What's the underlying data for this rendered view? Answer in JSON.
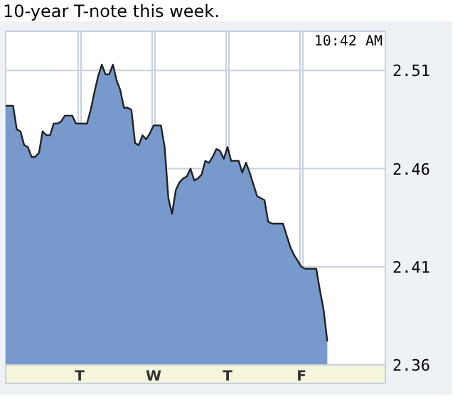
{
  "chart_data": {
    "type": "area",
    "title": "10-year T-note this week.",
    "annotations": [
      "10:42 AM"
    ],
    "categories": [
      null,
      null,
      null,
      null,
      null,
      null,
      null,
      null,
      null,
      null,
      null,
      null,
      null,
      null,
      null,
      null,
      null,
      null,
      null,
      null,
      "T",
      null,
      null,
      null,
      null,
      null,
      null,
      null,
      null,
      null,
      null,
      null,
      null,
      null,
      null,
      null,
      null,
      null,
      null,
      null,
      "W",
      null,
      null,
      null,
      null,
      null,
      null,
      null,
      null,
      null,
      null,
      null,
      null,
      null,
      null,
      null,
      null,
      null,
      null,
      null,
      "T",
      null,
      null,
      null,
      null,
      null,
      null,
      null,
      null,
      null,
      null,
      null,
      null,
      null,
      null,
      null,
      null,
      null,
      null,
      null,
      "F",
      null,
      null,
      null,
      null,
      null,
      null,
      null,
      null,
      null,
      null,
      null,
      null,
      null,
      null,
      null,
      null,
      null,
      null,
      null,
      null,
      null,
      null
    ],
    "series": [
      {
        "color": "#7799cc",
        "values": [
          2.492,
          2.492,
          2.492,
          2.48,
          2.479,
          2.472,
          2.471,
          2.466,
          2.466,
          2.468,
          2.479,
          2.477,
          2.477,
          2.483,
          2.483,
          2.484,
          2.487,
          2.487,
          2.487,
          2.483,
          2.483,
          2.483,
          2.483,
          2.49,
          2.499,
          2.507,
          2.513,
          2.508,
          2.508,
          2.513,
          2.505,
          2.5,
          2.491,
          2.491,
          2.49,
          2.473,
          2.472,
          2.477,
          2.475,
          2.478,
          2.482,
          2.482,
          2.482,
          2.471,
          2.445,
          2.437,
          2.449,
          2.453,
          2.455,
          2.456,
          2.46,
          2.454,
          2.455,
          2.457,
          2.464,
          2.463,
          2.466,
          2.47,
          2.469,
          2.465,
          2.471,
          2.464,
          2.464,
          2.464,
          2.458,
          2.463,
          2.458,
          2.452,
          2.446,
          2.445,
          2.444,
          2.433,
          2.432,
          2.432,
          2.432,
          2.432,
          2.426,
          2.42,
          2.416,
          2.413,
          2.41,
          2.409,
          2.409,
          2.409,
          2.409,
          2.398,
          2.388,
          2.372,
          null,
          null,
          null,
          null,
          null,
          null,
          null,
          null,
          null,
          null,
          null,
          null,
          null,
          null,
          null
        ]
      }
    ],
    "ylim": [
      2.36,
      2.53
    ],
    "yticks": [
      2.36,
      2.41,
      2.46,
      2.51
    ],
    "grid": true
  }
}
